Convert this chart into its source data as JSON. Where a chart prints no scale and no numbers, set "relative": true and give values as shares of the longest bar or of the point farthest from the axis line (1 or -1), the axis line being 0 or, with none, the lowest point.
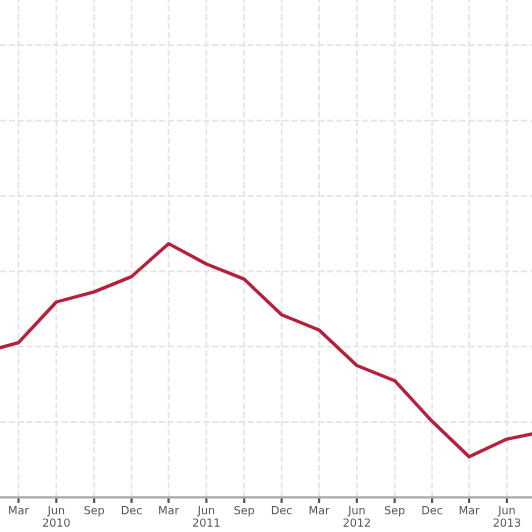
{
  "chart_data": {
    "type": "line",
    "relative": true,
    "x": [
      "2010-01-15",
      "2010-03-01",
      "2010-06-01",
      "2010-09-01",
      "2010-12-01",
      "2011-03-01",
      "2011-06-01",
      "2011-09-01",
      "2011-12-01",
      "2012-03-01",
      "2012-06-01",
      "2012-09-01",
      "2012-12-01",
      "2013-03-01",
      "2013-06-01",
      "2013-08-01"
    ],
    "series": [
      {
        "color": "#b5203c",
        "values": [
          0.59,
          0.61,
          0.77,
          0.81,
          0.87,
          1,
          0.92,
          0.86,
          0.72,
          0.66,
          0.52,
          0.46,
          0.3,
          0.16,
          0.23,
          0.25
        ]
      }
    ],
    "xlim": [
      "2010-01-15",
      "2013-08-01"
    ],
    "xticks": [
      {
        "value": "2010-03-01",
        "label": "Mar"
      },
      {
        "value": "2010-06-01",
        "label": "Jun\n2010"
      },
      {
        "value": "2010-09-01",
        "label": "Sep"
      },
      {
        "value": "2010-12-01",
        "label": "Dec"
      },
      {
        "value": "2011-03-01",
        "label": "Mar"
      },
      {
        "value": "2011-06-01",
        "label": "Jun\n2011"
      },
      {
        "value": "2011-09-01",
        "label": "Sep"
      },
      {
        "value": "2011-12-01",
        "label": "Dec"
      },
      {
        "value": "2012-03-01",
        "label": "Mar"
      },
      {
        "value": "2012-06-01",
        "label": "Jun\n2012"
      },
      {
        "value": "2012-09-01",
        "label": "Sep"
      },
      {
        "value": "2012-12-01",
        "label": "Dec"
      },
      {
        "value": "2013-03-01",
        "label": "Mar"
      },
      {
        "value": "2013-06-01",
        "label": "Jun\n2013"
      }
    ],
    "grid": true,
    "tick_labels": "x",
    "line_style": "solid",
    "marker": "none"
  }
}
